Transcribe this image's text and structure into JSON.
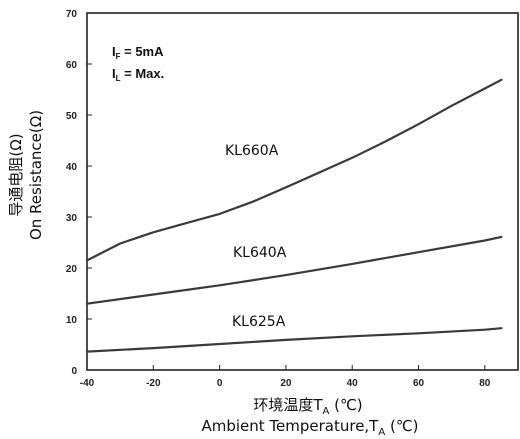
{
  "chart_data": {
    "type": "line",
    "title": "",
    "xlabel_cn": "环境温度T",
    "xlabel_en": "Ambient Temperature,T",
    "x_subscript": "A",
    "x_unit": " (℃)",
    "ylabel_cn": "导通电阻(Ω)",
    "ylabel_en": "On Resistance(Ω)",
    "xlim": [
      -40,
      85
    ],
    "ylim": [
      0,
      70
    ],
    "xticks": [
      "-40",
      "-20",
      "0",
      "20",
      "40",
      "60",
      "80"
    ],
    "yticks": [
      "0",
      "10",
      "20",
      "30",
      "40",
      "50",
      "60",
      "70"
    ],
    "grid": false,
    "annotations": {
      "line1_main": "I",
      "line1_sub": "F",
      "line1_rest": " = 5mA",
      "line2_main": "I",
      "line2_sub": "L",
      "line2_rest": " = Max."
    },
    "series": [
      {
        "name": "KL660A",
        "x": [
          -40,
          -30,
          -20,
          -10,
          0,
          10,
          20,
          30,
          40,
          50,
          60,
          70,
          80,
          85
        ],
        "y": [
          21.5,
          24.8,
          27.0,
          28.8,
          30.6,
          33.0,
          35.8,
          38.7,
          41.6,
          44.8,
          48.2,
          51.8,
          55.2,
          56.9
        ]
      },
      {
        "name": "KL640A",
        "x": [
          -40,
          -20,
          0,
          20,
          40,
          60,
          80,
          85
        ],
        "y": [
          13.0,
          14.8,
          16.6,
          18.6,
          20.8,
          23.1,
          25.4,
          26.1
        ]
      },
      {
        "name": "KL625A",
        "x": [
          -40,
          -20,
          0,
          20,
          40,
          60,
          80,
          85
        ],
        "y": [
          3.6,
          4.3,
          5.1,
          5.9,
          6.6,
          7.2,
          7.9,
          8.2
        ]
      }
    ],
    "line_color": "#3a3a3a"
  }
}
